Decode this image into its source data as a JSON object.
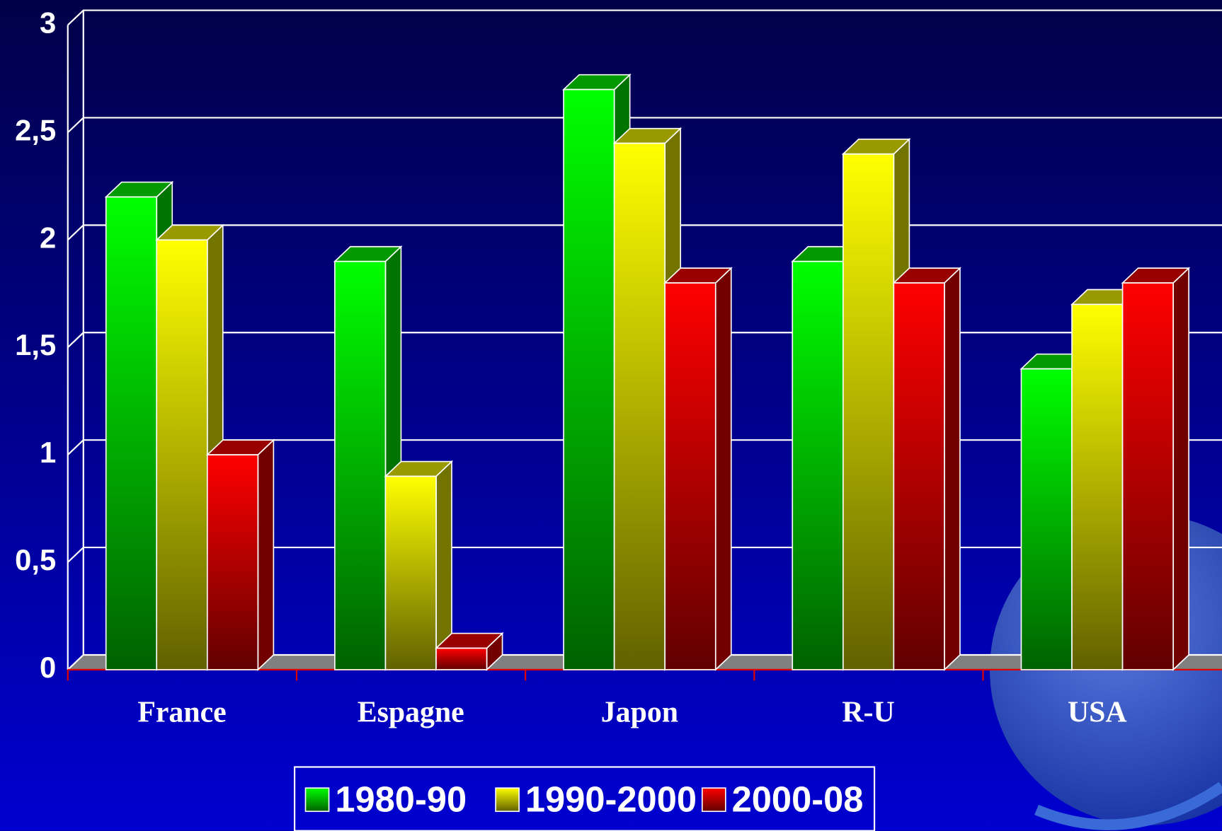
{
  "chart_data": {
    "type": "bar3d",
    "categories": [
      "France",
      "Espagne",
      "Japon",
      "R-U",
      "USA"
    ],
    "series": [
      {
        "name": "1980-90",
        "color": "#00ff00",
        "values": [
          2.2,
          1.9,
          2.7,
          1.9,
          1.4
        ]
      },
      {
        "name": "1990-2000",
        "color": "#ffff00",
        "values": [
          2.0,
          0.9,
          2.45,
          2.4,
          1.7
        ]
      },
      {
        "name": "2000-08",
        "color": "#ff0000",
        "values": [
          1.0,
          0.1,
          1.8,
          1.8,
          1.8
        ]
      }
    ],
    "ylim": [
      0,
      3
    ],
    "yticks": [
      0,
      {
        "value": 0.5,
        "label": "0,5"
      },
      1,
      {
        "value": 1.5,
        "label": "1,5"
      },
      2,
      {
        "value": 2.5,
        "label": "2,5"
      },
      3
    ],
    "grid": true,
    "legend": "bottom"
  }
}
